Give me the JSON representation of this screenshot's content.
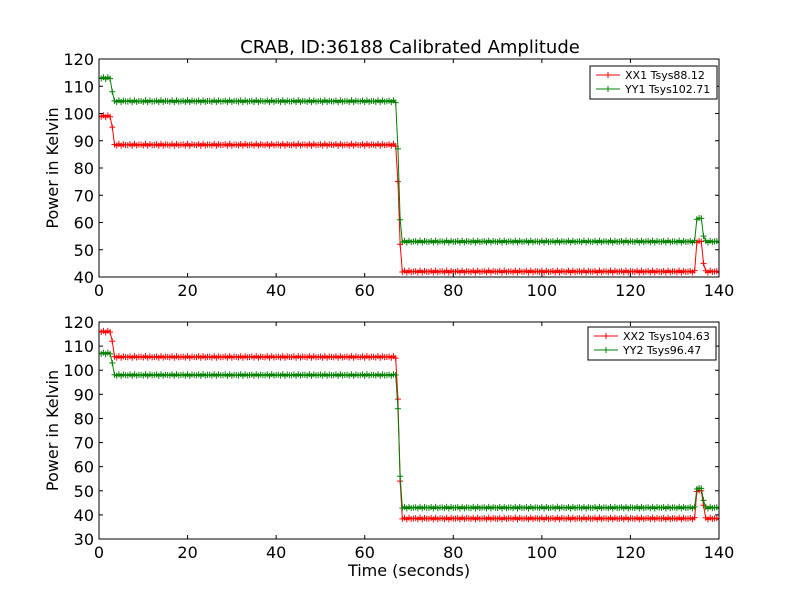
{
  "title": "CRAB, ID:36188 Calibrated Amplitude",
  "chart_data": [
    {
      "type": "line",
      "title": "CRAB, ID:36188 Calibrated Amplitude",
      "xlabel": "",
      "ylabel": "Power in Kelvin",
      "xlim": [
        0,
        140
      ],
      "ylim": [
        40,
        120
      ],
      "xticks": [
        "0",
        "20",
        "40",
        "60",
        "80",
        "100",
        "120",
        "140"
      ],
      "yticks": [
        "40",
        "50",
        "60",
        "70",
        "80",
        "90",
        "100",
        "110",
        "120"
      ],
      "legend_placement": "top-right",
      "grid": false,
      "series": [
        {
          "name": "XX1 Tsys88.12",
          "color": "#ff0000",
          "marker": "plus",
          "segments": [
            {
              "x0": 0.0,
              "x1": 2.5,
              "y": 99
            },
            {
              "x": 3.0,
              "y": 95
            },
            {
              "x0": 3.5,
              "x1": 66.5,
              "y": 88.5
            },
            {
              "x": 67.0,
              "y": 88
            },
            {
              "x": 67.5,
              "y": 75
            },
            {
              "x": 68.0,
              "y": 52
            },
            {
              "x0": 68.5,
              "x1": 134.5,
              "y": 42
            },
            {
              "x0": 135.0,
              "x1": 136.0,
              "y": 53
            },
            {
              "x": 136.5,
              "y": 45
            },
            {
              "x0": 137.0,
              "x1": 140.0,
              "y": 42
            }
          ]
        },
        {
          "name": "YY1 Tsys102.71",
          "color": "#008000",
          "marker": "plus",
          "segments": [
            {
              "x0": 0.0,
              "x1": 2.5,
              "y": 113
            },
            {
              "x": 3.0,
              "y": 108
            },
            {
              "x0": 3.5,
              "x1": 66.5,
              "y": 104.5
            },
            {
              "x": 67.0,
              "y": 104
            },
            {
              "x": 67.5,
              "y": 87
            },
            {
              "x": 68.0,
              "y": 61
            },
            {
              "x0": 68.5,
              "x1": 134.5,
              "y": 53
            },
            {
              "x0": 135.0,
              "x1": 136.0,
              "y": 61.5
            },
            {
              "x": 136.5,
              "y": 55
            },
            {
              "x0": 137.0,
              "x1": 140.0,
              "y": 53
            }
          ]
        }
      ]
    },
    {
      "type": "line",
      "title": "",
      "xlabel": "Time (seconds)",
      "ylabel": "Power in Kelvin",
      "xlim": [
        0,
        140
      ],
      "ylim": [
        30,
        120
      ],
      "xticks": [
        "0",
        "20",
        "40",
        "60",
        "80",
        "100",
        "120",
        "140"
      ],
      "yticks": [
        "30",
        "40",
        "50",
        "60",
        "70",
        "80",
        "90",
        "100",
        "110",
        "120"
      ],
      "legend_placement": "top-right",
      "grid": false,
      "series": [
        {
          "name": "XX2 Tsys104.63",
          "color": "#ff0000",
          "marker": "plus",
          "segments": [
            {
              "x0": 0.0,
              "x1": 2.5,
              "y": 116
            },
            {
              "x": 3.0,
              "y": 112
            },
            {
              "x0": 3.5,
              "x1": 66.5,
              "y": 105.5
            },
            {
              "x": 67.0,
              "y": 105
            },
            {
              "x": 67.5,
              "y": 88
            },
            {
              "x": 68.0,
              "y": 54
            },
            {
              "x0": 68.5,
              "x1": 134.5,
              "y": 38.5
            },
            {
              "x0": 135.0,
              "x1": 136.0,
              "y": 50
            },
            {
              "x": 136.5,
              "y": 44
            },
            {
              "x0": 137.0,
              "x1": 140.0,
              "y": 38.5
            }
          ]
        },
        {
          "name": "YY2 Tsys96.47",
          "color": "#008000",
          "marker": "plus",
          "segments": [
            {
              "x0": 0.0,
              "x1": 2.5,
              "y": 107
            },
            {
              "x": 3.0,
              "y": 103
            },
            {
              "x0": 3.5,
              "x1": 66.5,
              "y": 98
            },
            {
              "x": 67.0,
              "y": 98
            },
            {
              "x": 67.5,
              "y": 84
            },
            {
              "x": 68.0,
              "y": 56
            },
            {
              "x0": 68.5,
              "x1": 134.5,
              "y": 43
            },
            {
              "x0": 135.0,
              "x1": 136.0,
              "y": 51
            },
            {
              "x": 136.5,
              "y": 46
            },
            {
              "x0": 137.0,
              "x1": 140.0,
              "y": 43
            }
          ]
        }
      ]
    }
  ]
}
